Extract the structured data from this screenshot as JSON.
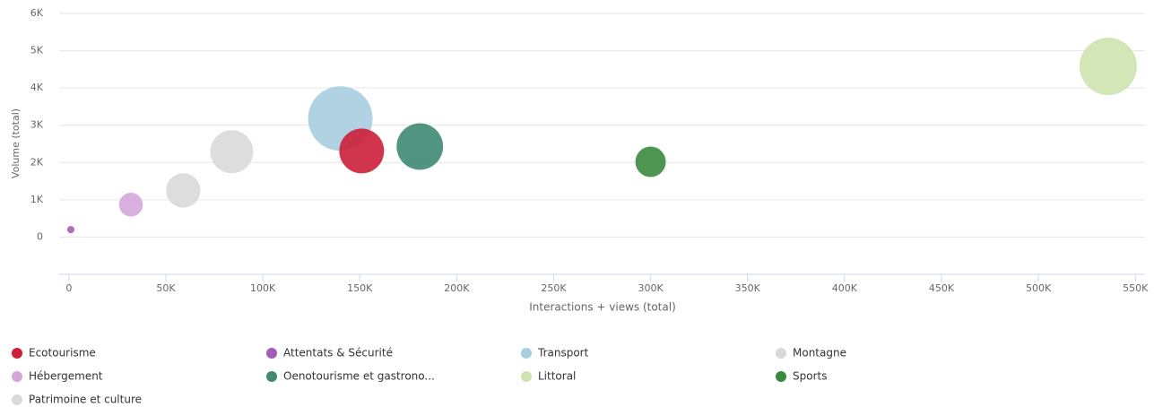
{
  "chart_data": {
    "type": "bubble",
    "x_label": "Interactions + views (total)",
    "y_label": "Volume (total)",
    "xlim": [
      -5000,
      555000
    ],
    "ylim": [
      -1000,
      6000
    ],
    "xticks": [
      0,
      {
        "value": 50000,
        "label": "50K"
      },
      {
        "value": 100000,
        "label": "100K"
      },
      {
        "value": 150000,
        "label": "150K"
      },
      {
        "value": 200000,
        "label": "200K"
      },
      {
        "value": 250000,
        "label": "250K"
      },
      {
        "value": 300000,
        "label": "300K"
      },
      {
        "value": 350000,
        "label": "350K"
      },
      {
        "value": 400000,
        "label": "400K"
      },
      {
        "value": 450000,
        "label": "450K"
      },
      {
        "value": 500000,
        "label": "500K"
      },
      {
        "value": 550000,
        "label": "550K"
      }
    ],
    "yticks": [
      0,
      {
        "value": 1000,
        "label": "1K"
      },
      {
        "value": 2000,
        "label": "2K"
      },
      {
        "value": 3000,
        "label": "3K"
      },
      {
        "value": 4000,
        "label": "4K"
      },
      {
        "value": 5000,
        "label": "5K"
      },
      {
        "value": 6000,
        "label": "6K"
      }
    ],
    "grid": true,
    "legend": "bottom",
    "series": [
      {
        "name": "Ecotourisme",
        "color": "#cc1f3a",
        "x": [
          151000
        ],
        "values": [
          2310
        ],
        "sizes": [
          39
        ]
      },
      {
        "name": "Attentats & Sécurité",
        "color": "#a45cb5",
        "x": [
          1000
        ],
        "values": [
          200
        ],
        "sizes": [
          1
        ]
      },
      {
        "name": "Transport",
        "color": "#a9cde0",
        "x": [
          140000
        ],
        "values": [
          3180
        ],
        "sizes": [
          81
        ]
      },
      {
        "name": "Montagne",
        "color": "#d9d9d9",
        "x": [
          84000
        ],
        "values": [
          2290
        ],
        "sizes": [
          36
        ]
      },
      {
        "name": "Hébergement",
        "color": "#d4a6da",
        "x": [
          32000
        ],
        "values": [
          870
        ],
        "sizes": [
          11
        ]
      },
      {
        "name": "Oenotourisme et gastrono...",
        "color": "#3e8a72",
        "x": [
          181000
        ],
        "values": [
          2430
        ],
        "sizes": [
          42
        ]
      },
      {
        "name": "Littoral",
        "color": "#cde3b0",
        "x": [
          536000
        ],
        "values": [
          4580
        ],
        "sizes": [
          64
        ]
      },
      {
        "name": "Sports",
        "color": "#3a8a3e",
        "x": [
          300000
        ],
        "values": [
          2020
        ],
        "sizes": [
          18
        ]
      },
      {
        "name": "Patrimoine et culture",
        "color": "#d9d9d9",
        "x": [
          59000
        ],
        "values": [
          1250
        ],
        "sizes": [
          23
        ]
      }
    ]
  }
}
